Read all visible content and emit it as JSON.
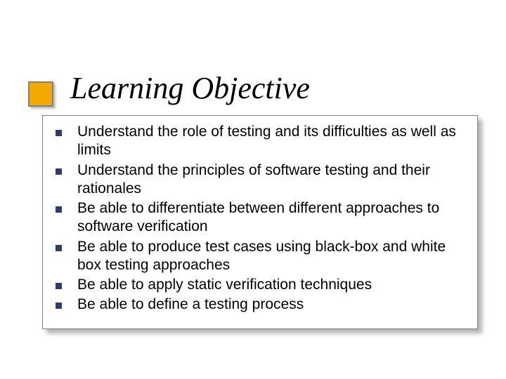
{
  "slide": {
    "title": "Learning Objective",
    "accent_box": {
      "fill": "#f2a900",
      "border": "#808080"
    },
    "bullet_marker_color": "#293c6b",
    "bullets": [
      "Understand the role of testing and its difficulties as well as limits",
      "Understand the principles of software testing and their rationales",
      "Be able to differentiate between different approaches to software verification",
      "Be able to produce test cases using black-box and white box testing approaches",
      "Be able to apply static verification techniques",
      "Be able to define a testing process"
    ],
    "title_font": {
      "family": "Times New Roman",
      "size_pt": 44,
      "style": "italic",
      "color": "#000000"
    },
    "body_font": {
      "family": "Verdana",
      "size_pt": 21,
      "color": "#000000"
    },
    "background_color": "#ffffff",
    "content_border_color": "#808080"
  }
}
